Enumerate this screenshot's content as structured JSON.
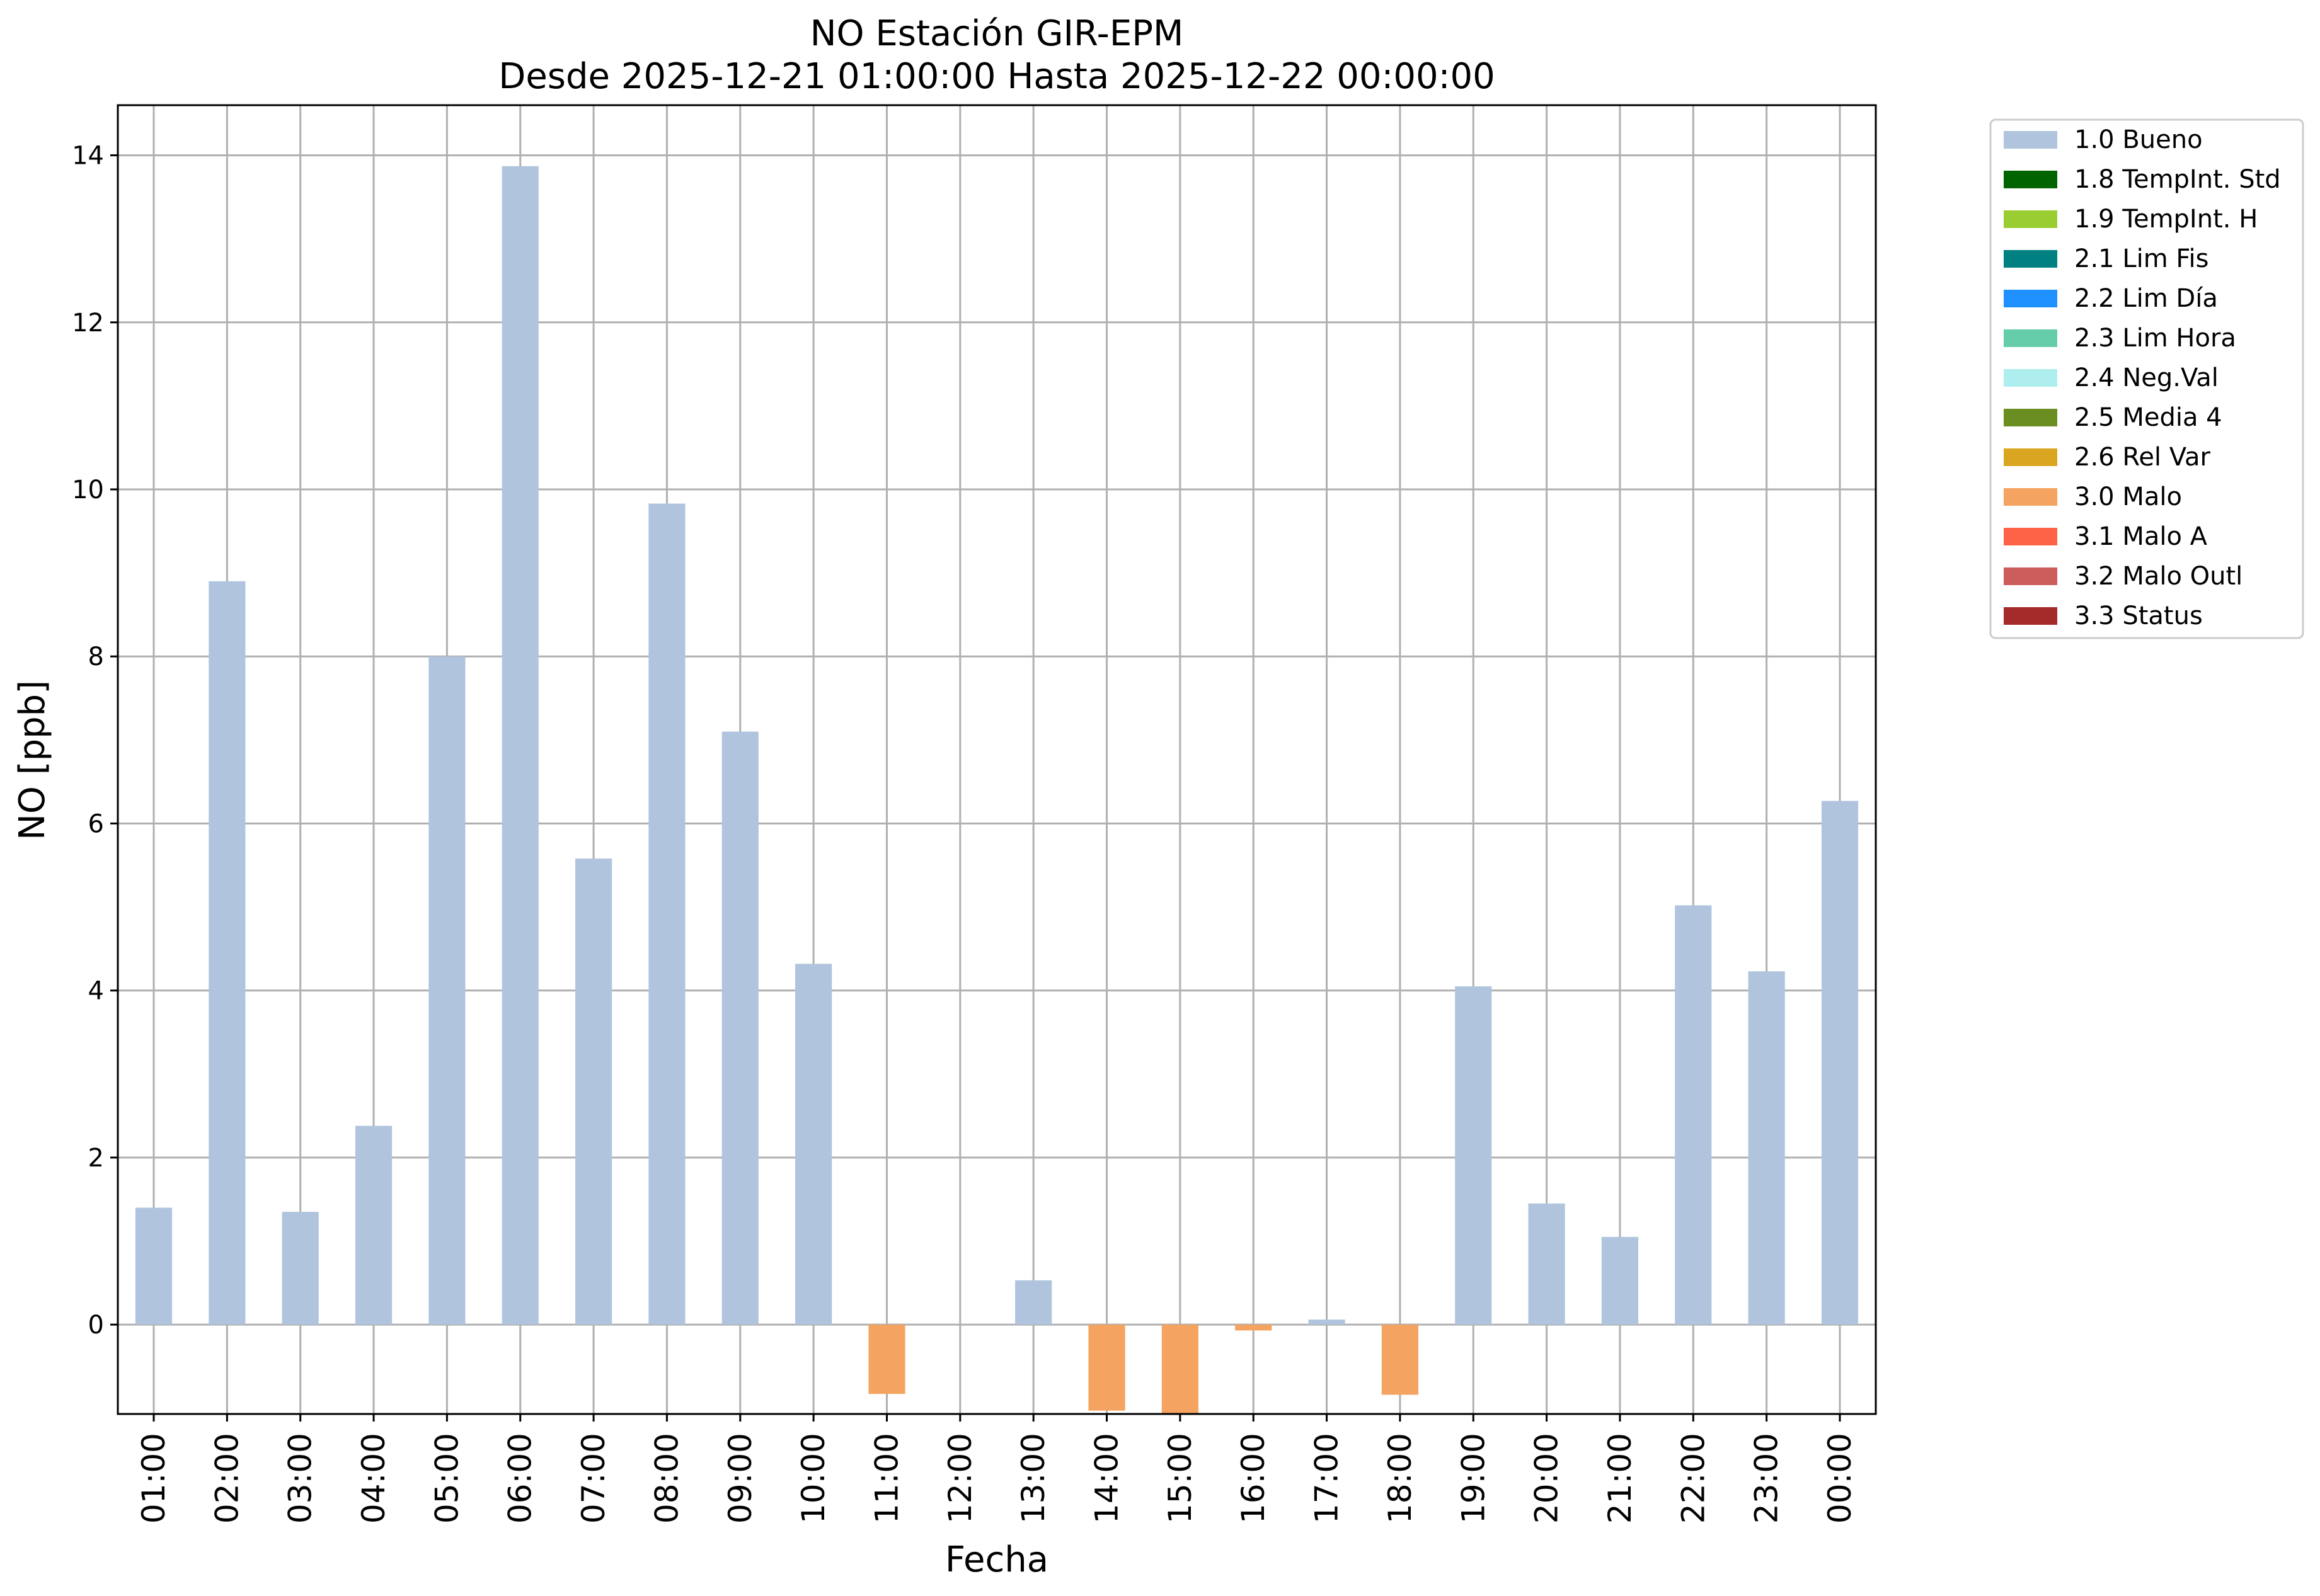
{
  "chart_data": {
    "type": "bar",
    "title": "NO Estación GIR-EPM",
    "subtitle": "Desde 2025-12-21 01:00:00 Hasta 2025-12-22 00:00:00",
    "xlabel": "Fecha",
    "ylabel": "NO [ppb]",
    "ylim": [
      -1.07,
      14.6
    ],
    "yticks": [
      0,
      2,
      4,
      6,
      8,
      10,
      12,
      14
    ],
    "grid": true,
    "legend_position": "outside-top-right",
    "categories": [
      "01:00",
      "02:00",
      "03:00",
      "04:00",
      "05:00",
      "06:00",
      "07:00",
      "08:00",
      "09:00",
      "10:00",
      "11:00",
      "12:00",
      "13:00",
      "14:00",
      "15:00",
      "16:00",
      "17:00",
      "18:00",
      "19:00",
      "20:00",
      "21:00",
      "22:00",
      "23:00",
      "00:00"
    ],
    "values": [
      1.4,
      8.9,
      1.35,
      2.38,
      8.0,
      13.87,
      5.58,
      9.83,
      7.1,
      4.32,
      -0.83,
      null,
      0.53,
      -1.03,
      -1.07,
      -0.07,
      0.06,
      -0.84,
      4.05,
      1.45,
      1.05,
      5.02,
      4.23,
      6.27
    ],
    "flags": [
      "1.0 Bueno",
      "1.0 Bueno",
      "1.0 Bueno",
      "1.0 Bueno",
      "1.0 Bueno",
      "1.0 Bueno",
      "1.0 Bueno",
      "1.0 Bueno",
      "1.0 Bueno",
      "1.0 Bueno",
      "3.0 Malo",
      null,
      "1.0 Bueno",
      "3.0 Malo",
      "3.0 Malo",
      "3.0 Malo",
      "1.0 Bueno",
      "3.0 Malo",
      "1.0 Bueno",
      "1.0 Bueno",
      "1.0 Bueno",
      "1.0 Bueno",
      "1.0 Bueno",
      "1.0 Bueno"
    ],
    "legend": [
      {
        "label": "1.0 Bueno",
        "color": "#b0c4de"
      },
      {
        "label": "1.8 TempInt. Std",
        "color": "#006400"
      },
      {
        "label": "1.9 TempInt. H",
        "color": "#9acd32"
      },
      {
        "label": "2.1 Lim Fis",
        "color": "#008080"
      },
      {
        "label": "2.2 Lim Día",
        "color": "#1e90ff"
      },
      {
        "label": "2.3 Lim Hora",
        "color": "#66cdaa"
      },
      {
        "label": "2.4 Neg.Val",
        "color": "#afeeee"
      },
      {
        "label": "2.5 Media 4",
        "color": "#6b8e23"
      },
      {
        "label": "2.6 Rel Var",
        "color": "#daa520"
      },
      {
        "label": "3.0 Malo",
        "color": "#f4a460"
      },
      {
        "label": "3.1 Malo A",
        "color": "#ff6347"
      },
      {
        "label": "3.2 Malo Outl",
        "color": "#cd5c5c"
      },
      {
        "label": "3.3 Status",
        "color": "#a52a2a"
      }
    ]
  }
}
